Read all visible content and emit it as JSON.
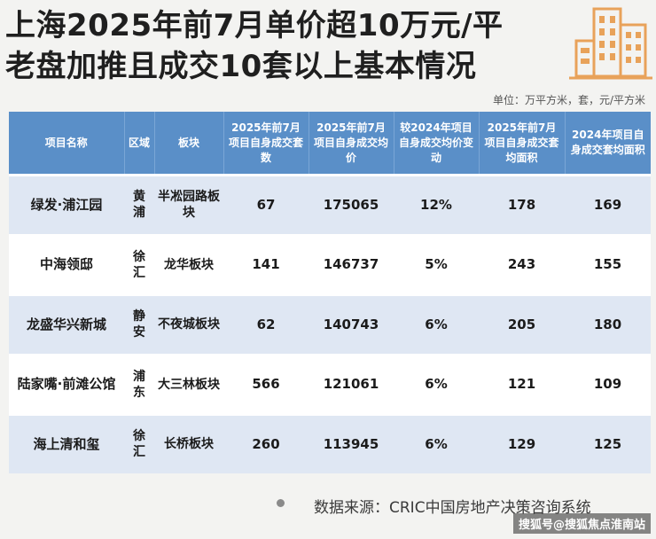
{
  "title": {
    "line1": "上海2025年前7月单价超10万元/平",
    "line2": "老盘加推且成交10套以上基本情况"
  },
  "unit_note": "单位：万平方米，套，元/平方米",
  "table": {
    "headers": [
      "项目名称",
      "区域",
      "板块",
      "2025年前7月项目自身成交套数",
      "2025年前7月项目自身成交均价",
      "较2024年项目自身成交均价变动",
      "2025年前7月项目自身成交套均面积",
      "2024年项目自身成交套均面积"
    ],
    "rows": [
      [
        "绿发·浦江园",
        "黄浦",
        "半凇园路板块",
        "67",
        "175065",
        "12%",
        "178",
        "169"
      ],
      [
        "中海领邸",
        "徐汇",
        "龙华板块",
        "141",
        "146737",
        "5%",
        "243",
        "155"
      ],
      [
        "龙盛华兴新城",
        "静安",
        "不夜城板块",
        "62",
        "140743",
        "6%",
        "205",
        "180"
      ],
      [
        "陆家嘴·前滩公馆",
        "浦东",
        "大三林板块",
        "566",
        "121061",
        "6%",
        "121",
        "109"
      ],
      [
        "海上清和玺",
        "徐汇",
        "长桥板块",
        "260",
        "113945",
        "6%",
        "129",
        "125"
      ]
    ]
  },
  "source": "数据来源：CRIC中国房地产决策咨询系统",
  "watermark": "搜狐号@搜狐焦点淮南站",
  "colors": {
    "header_bg": "#5a8fc8",
    "row_alt_bg": "#dfe7f3",
    "logo_orange": "#e8a25a"
  }
}
